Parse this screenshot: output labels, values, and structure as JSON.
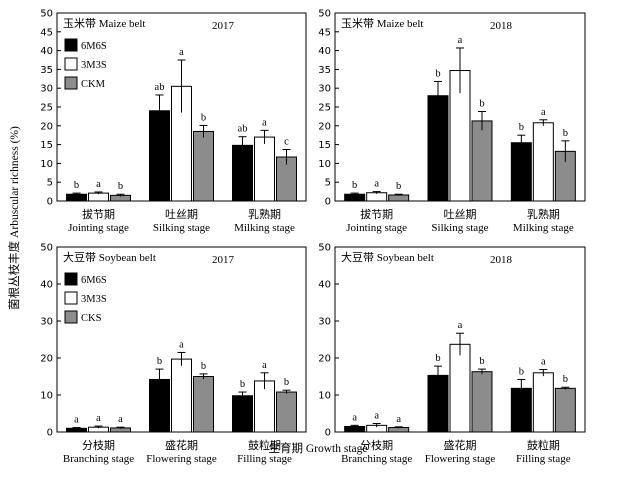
{
  "axis_titles": {
    "y": "菌根丛枝丰度 Arbuscular richness (%)",
    "x": "生育期 Growth stage"
  },
  "chart_data": [
    {
      "type": "bar",
      "panel_label": "玉米带 Maize belt",
      "year": "2017",
      "categories_cn": [
        "拔节期",
        "吐丝期",
        "乳熟期"
      ],
      "categories_en": [
        "Jointing stage",
        "Silking stage",
        "Milking stage"
      ],
      "series": [
        {
          "name": "6M6S",
          "color": "#000000",
          "values": [
            1.8,
            24.0,
            14.8
          ],
          "errors": [
            0.3,
            4.2,
            2.3
          ],
          "letters": [
            "b",
            "ab",
            "ab"
          ]
        },
        {
          "name": "3M3S",
          "color": "#ffffff",
          "values": [
            2.1,
            30.5,
            17.0
          ],
          "errors": [
            0.3,
            7.0,
            1.8
          ],
          "letters": [
            "a",
            "a",
            "a"
          ]
        },
        {
          "name": "CKM",
          "color": "#8c8c8c",
          "values": [
            1.5,
            18.5,
            11.7
          ],
          "errors": [
            0.3,
            1.6,
            2.0
          ],
          "letters": [
            "b",
            "b",
            "c"
          ]
        }
      ],
      "ylim": [
        0,
        50
      ],
      "yticks": [
        0,
        5,
        10,
        15,
        20,
        25,
        30,
        35,
        40,
        45,
        50
      ],
      "legend": "top-left"
    },
    {
      "type": "bar",
      "panel_label": "玉米带 Maize belt",
      "year": "2018",
      "categories_cn": [
        "拔节期",
        "吐丝期",
        "乳熟期"
      ],
      "categories_en": [
        "Jointing stage",
        "Silking stage",
        "Milking stage"
      ],
      "series": [
        {
          "name": "6M6S",
          "color": "#000000",
          "values": [
            1.8,
            28.0,
            15.5
          ],
          "errors": [
            0.3,
            3.8,
            2.0
          ],
          "letters": [
            "b",
            "b",
            "b"
          ]
        },
        {
          "name": "3M3S",
          "color": "#ffffff",
          "values": [
            2.2,
            34.7,
            20.8
          ],
          "errors": [
            0.3,
            6.0,
            0.8
          ],
          "letters": [
            "a",
            "a",
            "a"
          ]
        },
        {
          "name": "CKM",
          "color": "#8c8c8c",
          "values": [
            1.6,
            21.3,
            13.2
          ],
          "errors": [
            0.2,
            2.5,
            2.8
          ],
          "letters": [
            "b",
            "b",
            "b"
          ]
        }
      ],
      "ylim": [
        0,
        50
      ],
      "yticks": [
        0,
        5,
        10,
        15,
        20,
        25,
        30,
        35,
        40,
        45,
        50
      ],
      "legend": "none"
    },
    {
      "type": "bar",
      "panel_label": "大豆带 Soybean belt",
      "year": "2017",
      "categories_cn": [
        "分枝期",
        "盛花期",
        "鼓粒期"
      ],
      "categories_en": [
        "Branching stage",
        "Flowering stage",
        "Filling stage"
      ],
      "series": [
        {
          "name": "6M6S",
          "color": "#000000",
          "values": [
            1.0,
            14.2,
            9.8
          ],
          "errors": [
            0.2,
            2.8,
            1.0
          ],
          "letters": [
            "a",
            "b",
            "b"
          ]
        },
        {
          "name": "3M3S",
          "color": "#ffffff",
          "values": [
            1.3,
            19.7,
            13.8
          ],
          "errors": [
            0.3,
            1.8,
            2.2
          ],
          "letters": [
            "a",
            "a",
            "a"
          ]
        },
        {
          "name": "CKS",
          "color": "#8c8c8c",
          "values": [
            1.1,
            15.0,
            10.8
          ],
          "errors": [
            0.2,
            0.7,
            0.5
          ],
          "letters": [
            "a",
            "b",
            "b"
          ]
        }
      ],
      "ylim": [
        0,
        50
      ],
      "yticks": [
        0,
        10,
        20,
        30,
        40,
        50
      ],
      "legend": "top-left"
    },
    {
      "type": "bar",
      "panel_label": "大豆带 Soybean belt",
      "year": "2018",
      "categories_cn": [
        "分枝期",
        "盛花期",
        "鼓粒期"
      ],
      "categories_en": [
        "Branching stage",
        "Flowering stage",
        "Filling stage"
      ],
      "series": [
        {
          "name": "6M6S",
          "color": "#000000",
          "values": [
            1.5,
            15.3,
            11.8
          ],
          "errors": [
            0.3,
            2.5,
            2.4
          ],
          "letters": [
            "a",
            "b",
            "b"
          ]
        },
        {
          "name": "3M3S",
          "color": "#ffffff",
          "values": [
            1.8,
            23.7,
            16.0
          ],
          "errors": [
            0.5,
            3.0,
            0.9
          ],
          "letters": [
            "a",
            "a",
            "a"
          ]
        },
        {
          "name": "CKS",
          "color": "#8c8c8c",
          "values": [
            1.2,
            16.3,
            11.8
          ],
          "errors": [
            0.2,
            0.7,
            0.3
          ],
          "letters": [
            "a",
            "b",
            "b"
          ]
        }
      ],
      "ylim": [
        0,
        50
      ],
      "yticks": [
        0,
        10,
        20,
        30,
        40,
        50
      ],
      "legend": "none"
    }
  ]
}
